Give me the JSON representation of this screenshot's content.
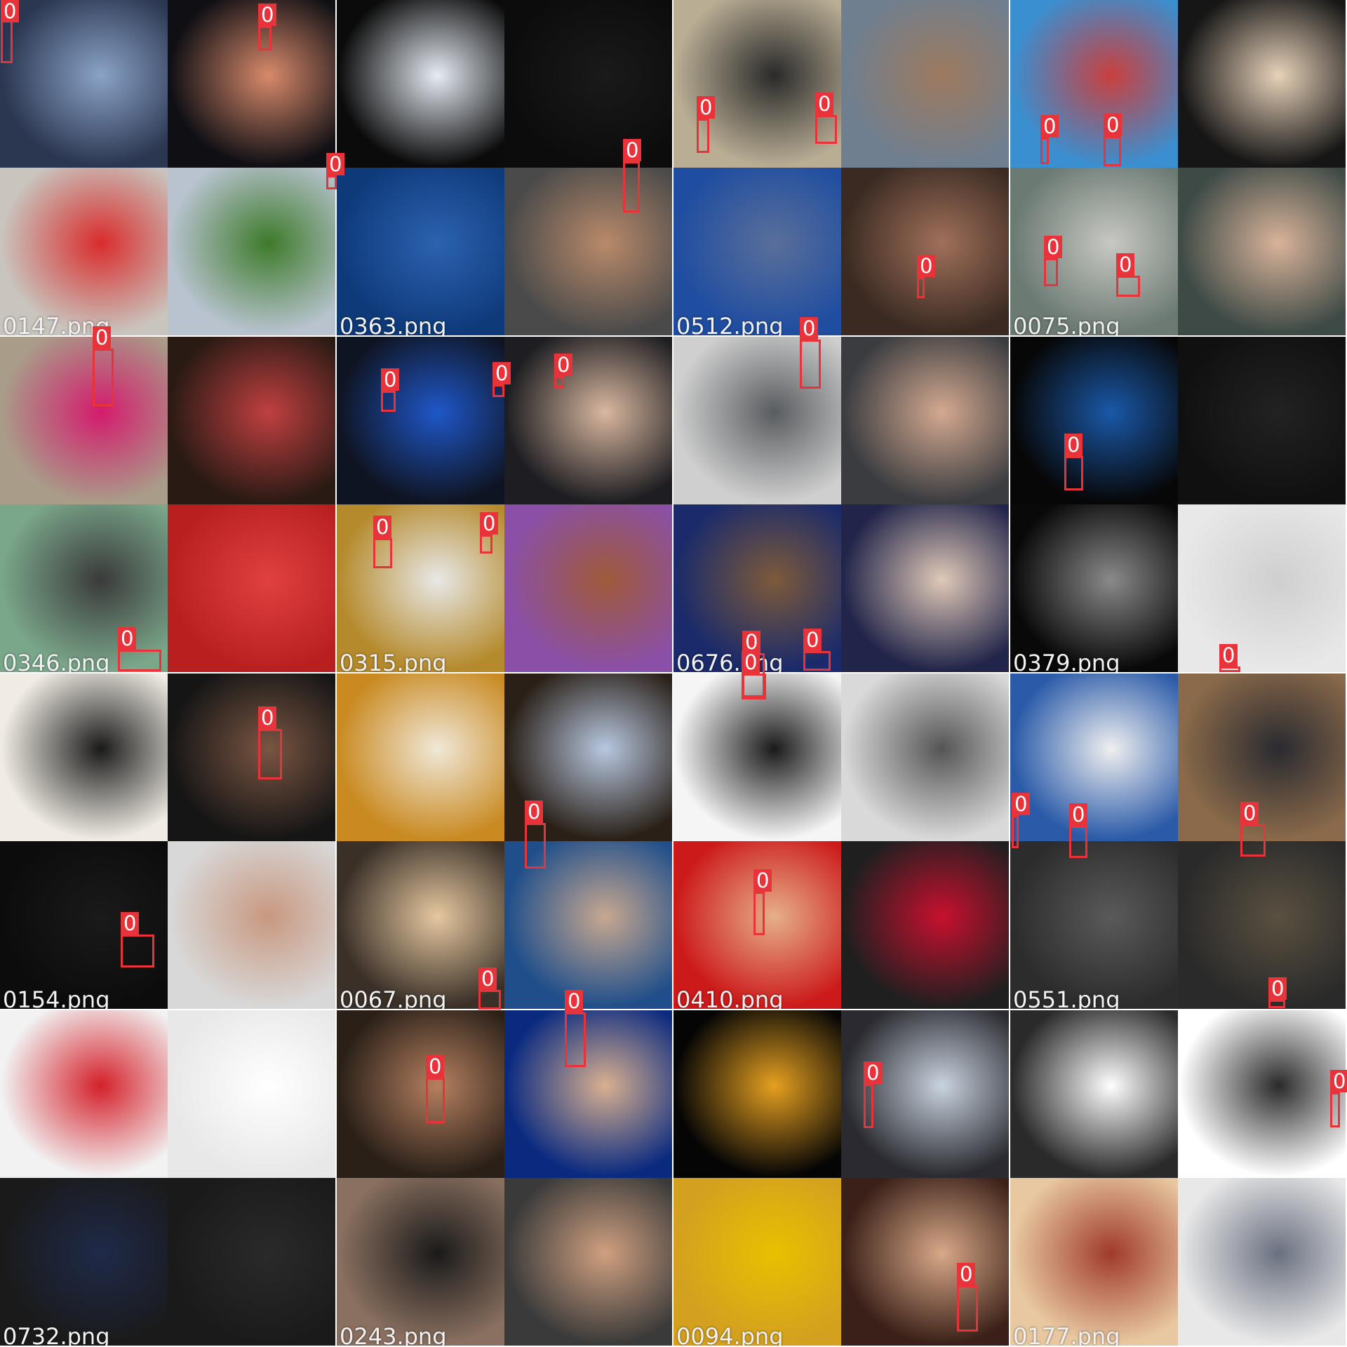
{
  "class_label": "0",
  "box_color": "#e8333a",
  "tiles": [
    {
      "filename": "0147.png",
      "bg": "#777777",
      "photos": [
        [
          "#2b3650",
          "#8aa3c7"
        ],
        [
          "#0f0f14",
          "#d98a6b"
        ],
        [
          "#c9c4bd",
          "#d92c2c"
        ],
        [
          "#b8c3cf",
          "#3d7a2a"
        ]
      ],
      "boxes": [
        [
          1,
          5,
          17,
          85
        ],
        [
          368,
          37,
          19,
          35
        ],
        [
          465,
          250,
          15,
          20
        ]
      ]
    },
    {
      "filename": "0363.png",
      "bg": "#777777",
      "photos": [
        [
          "#0b0b0b",
          "#e7edf5"
        ],
        [
          "#0c0c0c",
          "#1a1a1a"
        ],
        [
          "#0e3a7a",
          "#2c62b0"
        ],
        [
          "#4a4a4a",
          "#b98a6a"
        ]
      ],
      "boxes": [
        [
          888,
          230,
          24,
          73
        ]
      ]
    },
    {
      "filename": "0512.png",
      "bg": "#4f4f4f",
      "photos": [
        [
          "#b9ad94",
          "#2a2a2a"
        ],
        [
          "#6f7f90",
          "#9d7a5f"
        ],
        [
          "#1f4da0",
          "#5a6f9a"
        ],
        [
          "#3a2a22",
          "#a0705a"
        ]
      ],
      "boxes": [
        [
          993,
          169,
          18,
          49
        ],
        [
          1162,
          164,
          31,
          41
        ],
        [
          1307,
          395,
          11,
          30
        ]
      ]
    },
    {
      "filename": "0075.png",
      "bg": "#5e5e5e",
      "photos": [
        [
          "#3a8fd0",
          "#c9403f"
        ],
        [
          "#161616",
          "#e8d2b9"
        ],
        [
          "#6b7a72",
          "#c8c8c4"
        ],
        [
          "#3e4a46",
          "#d9b39a"
        ]
      ],
      "boxes": [
        [
          1483,
          196,
          12,
          38
        ],
        [
          1573,
          194,
          25,
          43
        ],
        [
          1488,
          368,
          20,
          40
        ],
        [
          1591,
          393,
          34,
          30
        ]
      ]
    },
    {
      "filename": "0346.png",
      "bg": "#777777",
      "photos": [
        [
          "#a99c89",
          "#d41b6d"
        ],
        [
          "#2a1a14",
          "#c04040"
        ],
        [
          "#7aa68a",
          "#3a3a3a"
        ],
        [
          "#b82020",
          "#e04040"
        ]
      ],
      "boxes": [
        [
          132,
          497,
          30,
          82
        ],
        [
          168,
          926,
          62,
          31
        ]
      ]
    },
    {
      "filename": "0315.png",
      "bg": "#6f6f6f",
      "photos": [
        [
          "#0f1422",
          "#1f57c9"
        ],
        [
          "#1e1e22",
          "#d9b8a0"
        ],
        [
          "#b58a2c",
          "#e8e8e8"
        ],
        [
          "#8a50a8",
          "#a05a3a"
        ]
      ],
      "boxes": [
        [
          543,
          557,
          21,
          30
        ],
        [
          702,
          548,
          17,
          18
        ],
        [
          790,
          536,
          14,
          17
        ],
        [
          532,
          767,
          27,
          43
        ],
        [
          684,
          762,
          18,
          27
        ]
      ]
    },
    {
      "filename": "0676.png",
      "bg": "#9a9a9a",
      "photos": [
        [
          "#cfcfcf",
          "#595c5f"
        ],
        [
          "#3a3c40",
          "#d4a990"
        ],
        [
          "#1a2a6a",
          "#7d5a3a"
        ],
        [
          "#22254a",
          "#e0c9b8"
        ]
      ],
      "boxes": [
        [
          1140,
          484,
          30,
          70
        ],
        [
          1145,
          928,
          39,
          28
        ],
        [
          1058,
          931,
          32,
          63
        ]
      ]
    },
    {
      "filename": "0379.png",
      "bg": "#5a5a5a",
      "photos": [
        [
          "#070707",
          "#1a58a8"
        ],
        [
          "#101010",
          "#222222"
        ],
        [
          "#090909",
          "#8a8a8a"
        ],
        [
          "#e8e8e8",
          "#cfcfcf"
        ]
      ],
      "boxes": [
        [
          1517,
          650,
          27,
          49
        ],
        [
          1738,
          950,
          30,
          8
        ]
      ]
    },
    {
      "filename": "0154.png",
      "bg": "#777777",
      "photos": [
        [
          "#f0ece4",
          "#1a1a1a"
        ],
        [
          "#151515",
          "#7a5542"
        ],
        [
          "#0c0c0c",
          "#1a1a1a"
        ],
        [
          "#d8d8d8",
          "#c89880"
        ]
      ],
      "boxes": [
        [
          368,
          1039,
          34,
          72
        ],
        [
          172,
          1332,
          48,
          47
        ]
      ]
    },
    {
      "filename": "0067.png",
      "bg": "#7a7a7a",
      "photos": [
        [
          "#c98a22",
          "#f0e8d8"
        ],
        [
          "#2a2018",
          "#b8c8e0"
        ],
        [
          "#3a3028",
          "#e6c8a0"
        ],
        [
          "#1f4e8a",
          "#c8a890"
        ]
      ],
      "boxes": [
        [
          748,
          1173,
          30,
          65
        ],
        [
          682,
          1411,
          32,
          28
        ]
      ]
    },
    {
      "filename": "0410.png",
      "bg": "#777777",
      "photos": [
        [
          "#f5f5f5",
          "#1a1a1a"
        ],
        [
          "#d9d9d9",
          "#555555"
        ],
        [
          "#cc1a1a",
          "#e6b08a"
        ],
        [
          "#1f1f1f",
          "#c8102e"
        ]
      ],
      "boxes": [
        [
          1057,
          960,
          35,
          37
        ],
        [
          1074,
          1271,
          16,
          62
        ]
      ]
    },
    {
      "filename": "0551.png",
      "bg": "#5f5f5f",
      "photos": [
        [
          "#2a5aa8",
          "#f0f0f0"
        ],
        [
          "#8a6a4a",
          "#2a2a30"
        ],
        [
          "#2c2c2c",
          "#5a5a5a"
        ],
        [
          "#2a2a2a",
          "#5a5040"
        ]
      ],
      "boxes": [
        [
          1442,
          1162,
          10,
          47
        ],
        [
          1524,
          1177,
          26,
          46
        ],
        [
          1768,
          1175,
          36,
          46
        ],
        [
          1808,
          1425,
          24,
          12
        ]
      ]
    },
    {
      "filename": "0732.png",
      "bg": "#777777",
      "photos": [
        [
          "#f2f2f2",
          "#d4202a"
        ],
        [
          "#e8e8e8",
          "#ffffff"
        ],
        [
          "#1a1a1a",
          "#1f2a4a"
        ],
        [
          "#1a1a1a",
          "#2a2a2a"
        ]
      ],
      "boxes": []
    },
    {
      "filename": "0243.png",
      "bg": "#777777",
      "photos": [
        [
          "#2a2018",
          "#b58060"
        ],
        [
          "#0a2a80",
          "#d9b090"
        ],
        [
          "#8a7060",
          "#1a1a1a"
        ],
        [
          "#3a3a3a",
          "#d0a080"
        ]
      ],
      "boxes": [
        [
          805,
          1443,
          30,
          78
        ],
        [
          607,
          1536,
          27,
          65
        ]
      ]
    },
    {
      "filename": "0094.png",
      "bg": "#6a6a6a",
      "photos": [
        [
          "#050505",
          "#e6a020"
        ],
        [
          "#2a2a30",
          "#c9d3df"
        ],
        [
          "#d4a020",
          "#e8c000"
        ],
        [
          "#3a2018",
          "#d8a888"
        ]
      ],
      "boxes": [
        [
          1231,
          1545,
          14,
          63
        ],
        [
          1364,
          1832,
          30,
          66
        ]
      ]
    },
    {
      "filename": "0177.png",
      "bg": "#8c8c8c",
      "photos": [
        [
          "#2a2a2a",
          "#ffffff"
        ],
        [
          "#ffffff",
          "#2a2a2a"
        ],
        [
          "#e8c8a0",
          "#a03a2a"
        ],
        [
          "#e8e8e8",
          "#6a7080"
        ]
      ],
      "boxes": [
        [
          1896,
          1557,
          14,
          50
        ]
      ]
    }
  ]
}
